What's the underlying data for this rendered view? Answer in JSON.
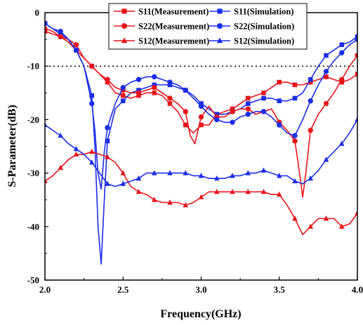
{
  "chart_data": {
    "type": "line",
    "xlabel": "Frequency(GHz)",
    "ylabel": "S-Parameter(dB)",
    "xlim": [
      2.0,
      4.0
    ],
    "ylim": [
      -50,
      0
    ],
    "xticks": [
      "2.0",
      "2.5",
      "3.0",
      "3.5",
      "4.0"
    ],
    "yticks": [
      "0",
      "-10",
      "-20",
      "-30",
      "-40",
      "-50"
    ],
    "xtick_values": [
      2.0,
      2.5,
      3.0,
      3.5,
      4.0
    ],
    "ytick_values": [
      0,
      -10,
      -20,
      -30,
      -40,
      -50
    ],
    "reference_line": {
      "y": -10,
      "style": "dotted"
    },
    "grid": false,
    "legend_position": "top-right",
    "series": [
      {
        "name": "S11(Measurement)",
        "color": "#e8141a",
        "marker": "square",
        "x": [
          2.0,
          2.05,
          2.1,
          2.15,
          2.2,
          2.25,
          2.3,
          2.35,
          2.4,
          2.45,
          2.5,
          2.55,
          2.6,
          2.65,
          2.7,
          2.75,
          2.8,
          2.85,
          2.9,
          2.95,
          3.0,
          3.05,
          3.1,
          3.15,
          3.2,
          3.25,
          3.3,
          3.35,
          3.4,
          3.45,
          3.5,
          3.55,
          3.6,
          3.65,
          3.7,
          3.75,
          3.8,
          3.85,
          3.9,
          3.95,
          4.0
        ],
        "y": [
          -3.5,
          -4.0,
          -4.5,
          -5.5,
          -7.0,
          -8.5,
          -10.0,
          -11.5,
          -13.0,
          -15.0,
          -15.5,
          -16.0,
          -15.5,
          -15.0,
          -15.0,
          -15.5,
          -17.0,
          -18.5,
          -21.0,
          -22.5,
          -21.0,
          -21.0,
          -19.0,
          -18.5,
          -18.0,
          -17.0,
          -16.0,
          -15.5,
          -15.0,
          -14.0,
          -13.0,
          -13.0,
          -13.5,
          -13.5,
          -13.0,
          -12.5,
          -12.0,
          -12.5,
          -13.0,
          -12.5,
          -11.5
        ]
      },
      {
        "name": "S11(Simulation)",
        "color": "#1a2de8",
        "marker": "square",
        "x": [
          2.0,
          2.05,
          2.1,
          2.15,
          2.2,
          2.25,
          2.3,
          2.32,
          2.34,
          2.36,
          2.38,
          2.4,
          2.45,
          2.5,
          2.55,
          2.6,
          2.65,
          2.7,
          2.75,
          2.8,
          2.85,
          2.9,
          2.95,
          3.0,
          3.05,
          3.1,
          3.15,
          3.2,
          3.25,
          3.3,
          3.35,
          3.4,
          3.45,
          3.5,
          3.55,
          3.6,
          3.65,
          3.7,
          3.75,
          3.8,
          3.85,
          3.9,
          3.95,
          4.0
        ],
        "y": [
          -2.0,
          -3.0,
          -4.0,
          -5.0,
          -7.0,
          -10.0,
          -15.5,
          -25.0,
          -40.0,
          -47.0,
          -35.0,
          -24.0,
          -18.0,
          -16.5,
          -15.0,
          -14.5,
          -14.0,
          -13.5,
          -13.5,
          -13.5,
          -14.0,
          -14.5,
          -15.5,
          -17.0,
          -18.0,
          -19.0,
          -19.0,
          -18.5,
          -18.0,
          -17.0,
          -16.5,
          -16.0,
          -16.0,
          -16.5,
          -16.5,
          -16.0,
          -15.0,
          -12.5,
          -10.0,
          -8.0,
          -7.0,
          -6.0,
          -5.5,
          -4.5
        ]
      },
      {
        "name": "S22(Measurement)",
        "color": "#e8141a",
        "marker": "circle",
        "x": [
          2.0,
          2.05,
          2.1,
          2.15,
          2.2,
          2.25,
          2.3,
          2.35,
          2.4,
          2.45,
          2.5,
          2.55,
          2.6,
          2.65,
          2.7,
          2.75,
          2.8,
          2.85,
          2.9,
          2.93,
          2.96,
          3.0,
          3.05,
          3.1,
          3.15,
          3.2,
          3.25,
          3.3,
          3.35,
          3.4,
          3.45,
          3.5,
          3.55,
          3.6,
          3.63,
          3.65,
          3.67,
          3.7,
          3.75,
          3.8,
          3.85,
          3.9,
          3.95,
          4.0
        ],
        "y": [
          -3.0,
          -3.5,
          -4.5,
          -5.0,
          -6.0,
          -8.5,
          -10.0,
          -11.5,
          -12.5,
          -14.0,
          -14.5,
          -15.0,
          -15.0,
          -14.5,
          -14.0,
          -15.0,
          -16.0,
          -17.0,
          -18.5,
          -23.0,
          -24.5,
          -19.5,
          -17.5,
          -19.5,
          -19.5,
          -18.5,
          -18.0,
          -18.0,
          -19.0,
          -18.5,
          -18.0,
          -20.5,
          -22.0,
          -24.0,
          -30.0,
          -34.5,
          -30.0,
          -22.0,
          -19.0,
          -17.0,
          -15.0,
          -12.5,
          -10.0,
          -8.0
        ]
      },
      {
        "name": "S22(Simulation)",
        "color": "#1a2de8",
        "marker": "circle",
        "x": [
          2.0,
          2.05,
          2.1,
          2.15,
          2.2,
          2.25,
          2.3,
          2.32,
          2.34,
          2.36,
          2.38,
          2.4,
          2.45,
          2.5,
          2.55,
          2.6,
          2.65,
          2.7,
          2.75,
          2.8,
          2.85,
          2.9,
          2.95,
          3.0,
          3.05,
          3.1,
          3.15,
          3.2,
          3.25,
          3.3,
          3.35,
          3.4,
          3.45,
          3.5,
          3.55,
          3.6,
          3.65,
          3.7,
          3.75,
          3.8,
          3.85,
          3.9,
          3.95,
          4.0
        ],
        "y": [
          -2.0,
          -3.0,
          -3.5,
          -5.0,
          -7.0,
          -10.0,
          -17.0,
          -22.0,
          -30.0,
          -33.0,
          -26.0,
          -21.5,
          -17.0,
          -14.0,
          -13.0,
          -12.5,
          -12.0,
          -12.0,
          -12.5,
          -13.0,
          -13.5,
          -14.5,
          -16.0,
          -17.5,
          -19.0,
          -20.0,
          -20.5,
          -20.5,
          -19.5,
          -19.0,
          -18.5,
          -18.5,
          -19.5,
          -21.0,
          -22.5,
          -23.0,
          -20.0,
          -16.5,
          -13.5,
          -11.0,
          -9.0,
          -7.5,
          -6.0,
          -5.0
        ]
      },
      {
        "name": "S12(Measurement)",
        "color": "#e8141a",
        "marker": "triangle",
        "x": [
          2.0,
          2.05,
          2.1,
          2.15,
          2.2,
          2.25,
          2.3,
          2.35,
          2.4,
          2.45,
          2.5,
          2.55,
          2.6,
          2.65,
          2.7,
          2.75,
          2.8,
          2.85,
          2.9,
          2.95,
          3.0,
          3.05,
          3.1,
          3.15,
          3.2,
          3.25,
          3.3,
          3.35,
          3.4,
          3.45,
          3.5,
          3.55,
          3.6,
          3.65,
          3.7,
          3.75,
          3.8,
          3.85,
          3.9,
          3.95,
          4.0
        ],
        "y": [
          -31.5,
          -30.5,
          -29.0,
          -27.5,
          -26.5,
          -26.5,
          -26.0,
          -26.5,
          -27.0,
          -28.0,
          -30.0,
          -32.5,
          -33.5,
          -34.0,
          -35.0,
          -35.5,
          -35.5,
          -35.5,
          -36.0,
          -35.5,
          -34.5,
          -33.5,
          -33.5,
          -33.5,
          -33.5,
          -33.5,
          -33.5,
          -33.5,
          -33.5,
          -34.0,
          -34.0,
          -36.0,
          -38.5,
          -41.5,
          -40.0,
          -38.5,
          -38.5,
          -38.5,
          -40.0,
          -39.5,
          -37.5
        ]
      },
      {
        "name": "S12(Simulation)",
        "color": "#1a2de8",
        "marker": "triangle",
        "x": [
          2.0,
          2.05,
          2.1,
          2.15,
          2.2,
          2.25,
          2.3,
          2.35,
          2.4,
          2.45,
          2.5,
          2.55,
          2.6,
          2.65,
          2.7,
          2.75,
          2.8,
          2.85,
          2.9,
          2.95,
          3.0,
          3.05,
          3.1,
          3.15,
          3.2,
          3.25,
          3.3,
          3.35,
          3.4,
          3.45,
          3.5,
          3.55,
          3.6,
          3.65,
          3.7,
          3.75,
          3.8,
          3.85,
          3.9,
          3.95,
          4.0
        ],
        "y": [
          -21.0,
          -22.0,
          -23.0,
          -24.5,
          -25.5,
          -26.5,
          -28.0,
          -30.0,
          -32.0,
          -32.5,
          -32.0,
          -31.5,
          -31.0,
          -30.0,
          -30.0,
          -30.0,
          -30.0,
          -30.0,
          -30.0,
          -30.5,
          -30.5,
          -31.0,
          -31.0,
          -31.0,
          -30.5,
          -30.5,
          -30.0,
          -30.0,
          -29.5,
          -30.0,
          -30.5,
          -30.5,
          -31.5,
          -32.0,
          -31.0,
          -29.5,
          -27.5,
          -26.0,
          -24.5,
          -22.5,
          -20.0
        ]
      }
    ]
  }
}
